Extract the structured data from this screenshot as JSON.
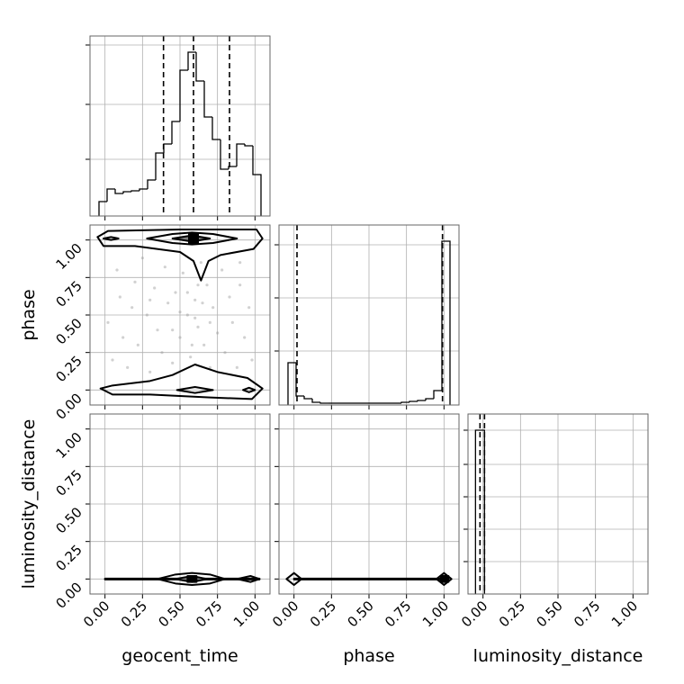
{
  "chart_data": [
    {
      "type": "histogram",
      "bins": [
        -0.04,
        0.014,
        0.068,
        0.122,
        0.176,
        0.23,
        0.284,
        0.338,
        0.392,
        0.446,
        0.5,
        0.554,
        0.608,
        0.662,
        0.716,
        0.77,
        0.824,
        0.878,
        0.932,
        0.986,
        1.04
      ],
      "values": [
        16,
        30,
        25,
        27,
        28,
        30,
        40,
        70,
        80,
        105,
        162,
        182,
        150,
        110,
        85,
        52,
        55,
        80,
        78,
        46
      ],
      "quantiles": [
        0.39,
        0.59,
        0.83
      ],
      "xlim": [
        -0.1,
        1.1
      ],
      "ylim": [
        0,
        200
      ],
      "xticks": [
        0,
        0.25,
        0.5,
        0.75,
        1
      ],
      "yticks": [
        63,
        124,
        190
      ],
      "grid": true,
      "color": "#000000"
    },
    {
      "type": "scatter",
      "x": [
        0.02,
        0.05,
        0.08,
        0.1,
        0.12,
        0.15,
        0.18,
        0.2,
        0.22,
        0.25,
        0.28,
        0.3,
        0.33,
        0.35,
        0.38,
        0.4,
        0.42,
        0.45,
        0.47,
        0.5,
        0.52,
        0.55,
        0.57,
        0.6,
        0.62,
        0.64,
        0.66,
        0.68,
        0.7,
        0.72,
        0.75,
        0.78,
        0.8,
        0.83,
        0.85,
        0.88,
        0.9,
        0.93,
        0.96,
        0.98,
        0.55,
        0.6,
        0.65,
        0.58,
        0.62,
        0.5,
        0.45,
        0.7,
        0.3,
        0.9
      ],
      "y": [
        0.45,
        0.2,
        0.8,
        0.62,
        0.35,
        0.15,
        0.55,
        0.72,
        0.3,
        0.88,
        0.5,
        0.12,
        0.68,
        0.4,
        0.25,
        0.82,
        0.58,
        0.18,
        0.65,
        0.35,
        0.78,
        0.5,
        0.22,
        0.6,
        0.42,
        0.85,
        0.3,
        0.7,
        0.15,
        0.55,
        0.38,
        0.8,
        0.25,
        0.62,
        0.45,
        0.15,
        0.7,
        0.35,
        0.55,
        0.2,
        0.65,
        0.48,
        0.58,
        0.3,
        0.7,
        0.52,
        0.4,
        0.45,
        0.6,
        0.85
      ],
      "point_color": "#999999",
      "contours": [
        {
          "x": [
            -0.05,
            0.02,
            0.5,
            1.01,
            1.05,
            0.99,
            0.77,
            0.69,
            0.64,
            0.59,
            0.5,
            0.2,
            -0.01
          ],
          "y": [
            1.02,
            1.06,
            1.07,
            1.07,
            1.01,
            0.94,
            0.9,
            0.86,
            0.73,
            0.86,
            0.92,
            0.96,
            0.96
          ],
          "color": "none"
        },
        {
          "x": [
            0.28,
            0.45,
            0.58,
            0.72,
            0.88,
            0.72,
            0.58,
            0.45
          ],
          "y": [
            1.01,
            1.04,
            1.05,
            1.04,
            1.01,
            0.98,
            0.97,
            0.98
          ],
          "color": "none"
        },
        {
          "x": [
            0.45,
            0.58,
            0.7,
            0.58
          ],
          "y": [
            1.01,
            1.03,
            1.01,
            0.99
          ],
          "color": "#808080"
        },
        {
          "x": [
            0.56,
            0.62,
            0.62,
            0.56
          ],
          "y": [
            0.98,
            0.98,
            1.04,
            1.04
          ],
          "color": "#000000"
        },
        {
          "x": [
            -0.01,
            0.04,
            0.09,
            0.04
          ],
          "y": [
            1.01,
            1.02,
            1.01,
            1.0
          ],
          "color": "none"
        },
        {
          "x": [
            -0.03,
            0.05,
            0.3,
            0.45,
            0.6,
            0.75,
            0.95,
            1.05,
            0.98,
            0.7,
            0.3,
            0.05
          ],
          "y": [
            0.01,
            0.03,
            0.06,
            0.1,
            0.17,
            0.12,
            0.08,
            0.01,
            -0.06,
            -0.05,
            -0.03,
            -0.03
          ],
          "color": "none"
        },
        {
          "x": [
            0.48,
            0.6,
            0.72,
            0.6
          ],
          "y": [
            0.0,
            0.02,
            0.0,
            -0.02
          ],
          "color": "none"
        },
        {
          "x": [
            0.92,
            0.96,
            1.0,
            0.96
          ],
          "y": [
            0.0,
            0.015,
            0.0,
            -0.015
          ],
          "color": "none"
        }
      ],
      "xlim": [
        -0.1,
        1.1
      ],
      "ylim": [
        -0.1,
        1.1
      ],
      "xticks": [
        0,
        0.25,
        0.5,
        0.75,
        1
      ],
      "yticks": [
        {
          "value": 0,
          "label": "0.00"
        },
        {
          "value": 0.25,
          "label": "0.25"
        },
        {
          "value": 0.5,
          "label": "0.50"
        },
        {
          "value": 0.75,
          "label": "0.75"
        },
        {
          "value": 1,
          "label": "1.00"
        }
      ],
      "ylabel": "phase",
      "grid": true
    },
    {
      "type": "histogram",
      "bins": [
        -0.04,
        0.014,
        0.068,
        0.122,
        0.176,
        0.23,
        0.284,
        0.338,
        0.392,
        0.446,
        0.5,
        0.554,
        0.608,
        0.662,
        0.716,
        0.77,
        0.824,
        0.878,
        0.932,
        0.986,
        1.04
      ],
      "values": [
        47,
        10,
        7,
        3,
        2,
        2,
        2,
        2,
        2,
        2,
        2,
        2,
        2,
        2,
        3,
        4,
        5,
        7,
        16,
        182
      ],
      "quantiles": [
        0.02,
        0.99
      ],
      "xlim": [
        -0.1,
        1.1
      ],
      "ylim": [
        0,
        200
      ],
      "xticks": [
        0,
        0.25,
        0.5,
        0.75,
        1
      ],
      "yticks": [
        60,
        119,
        178
      ],
      "grid": true,
      "color": "#000000"
    },
    {
      "type": "scatter",
      "contours": [
        {
          "x": [
            0,
            1.03,
            1.03,
            0
          ],
          "y": [
            0.003,
            0.003,
            -0.003,
            -0.003
          ],
          "color": "#000000"
        },
        {
          "x": [
            0.35,
            0.47,
            0.58,
            0.7,
            0.8,
            0.7,
            0.58,
            0.47
          ],
          "y": [
            0,
            0.03,
            0.04,
            0.03,
            0,
            -0.03,
            -0.04,
            -0.03
          ],
          "color": "none"
        },
        {
          "x": [
            0.47,
            0.58,
            0.68,
            0.58
          ],
          "y": [
            0,
            0.02,
            0,
            -0.02
          ],
          "color": "#808080"
        },
        {
          "x": [
            0.55,
            0.61,
            0.61,
            0.55
          ],
          "y": [
            -0.02,
            -0.02,
            0.02,
            0.02
          ],
          "color": "#000000"
        },
        {
          "x": [
            0.88,
            0.97,
            1.03,
            0.97
          ],
          "y": [
            0,
            0.02,
            0,
            -0.02
          ],
          "color": "none"
        }
      ],
      "xlim": [
        -0.1,
        1.1
      ],
      "ylim": [
        -0.1,
        1.1
      ],
      "xticks": [
        {
          "value": 0,
          "label": "0.00"
        },
        {
          "value": 0.25,
          "label": "0.25"
        },
        {
          "value": 0.5,
          "label": "0.50"
        },
        {
          "value": 0.75,
          "label": "0.75"
        },
        {
          "value": 1,
          "label": "1.00"
        }
      ],
      "yticks": [
        {
          "value": 0,
          "label": "0.00"
        },
        {
          "value": 0.25,
          "label": "0.25"
        },
        {
          "value": 0.5,
          "label": "0.50"
        },
        {
          "value": 0.75,
          "label": "0.75"
        },
        {
          "value": 1,
          "label": "1.00"
        }
      ],
      "xlabel": "geocent_time",
      "ylabel": "luminosity_distance",
      "grid": true
    },
    {
      "type": "scatter",
      "contours": [
        {
          "x": [
            0,
            1,
            1,
            0
          ],
          "y": [
            0.003,
            0.003,
            -0.003,
            -0.003
          ],
          "color": "#000000"
        },
        {
          "x": [
            -0.05,
            0,
            0.05,
            0
          ],
          "y": [
            0,
            0.04,
            0,
            -0.04
          ],
          "color": "none"
        },
        {
          "x": [
            0.95,
            1,
            1.05,
            1
          ],
          "y": [
            0,
            0.04,
            0,
            -0.04
          ],
          "color": "none"
        },
        {
          "x": [
            0.98,
            1.03,
            1.03,
            0.98
          ],
          "y": [
            -0.02,
            -0.02,
            0.02,
            0.02
          ],
          "color": "#000000"
        }
      ],
      "xlim": [
        -0.1,
        1.1
      ],
      "ylim": [
        -0.1,
        1.1
      ],
      "xticks": [
        {
          "value": 0,
          "label": "0.00"
        },
        {
          "value": 0.25,
          "label": "0.25"
        },
        {
          "value": 0.5,
          "label": "0.50"
        },
        {
          "value": 0.75,
          "label": "0.75"
        },
        {
          "value": 1,
          "label": "1.00"
        }
      ],
      "yticks": [
        0,
        0.25,
        0.5,
        0.75,
        1
      ],
      "xlabel": "phase",
      "grid": true
    },
    {
      "type": "histogram",
      "bins": [
        -0.05,
        0.01
      ],
      "values": [
        182
      ],
      "quantiles": [
        -0.02,
        0.01
      ],
      "xlim": [
        -0.1,
        1.1
      ],
      "ylim": [
        0,
        200
      ],
      "xticks": [
        {
          "value": 0,
          "label": "0.00"
        },
        {
          "value": 0.25,
          "label": "0.25"
        },
        {
          "value": 0.5,
          "label": "0.50"
        },
        {
          "value": 0.75,
          "label": "0.75"
        },
        {
          "value": 1,
          "label": "1.00"
        }
      ],
      "yticks": [
        36,
        72,
        108,
        144,
        182
      ],
      "xlabel": "luminosity_distance",
      "grid": true,
      "color": "#000000"
    }
  ]
}
